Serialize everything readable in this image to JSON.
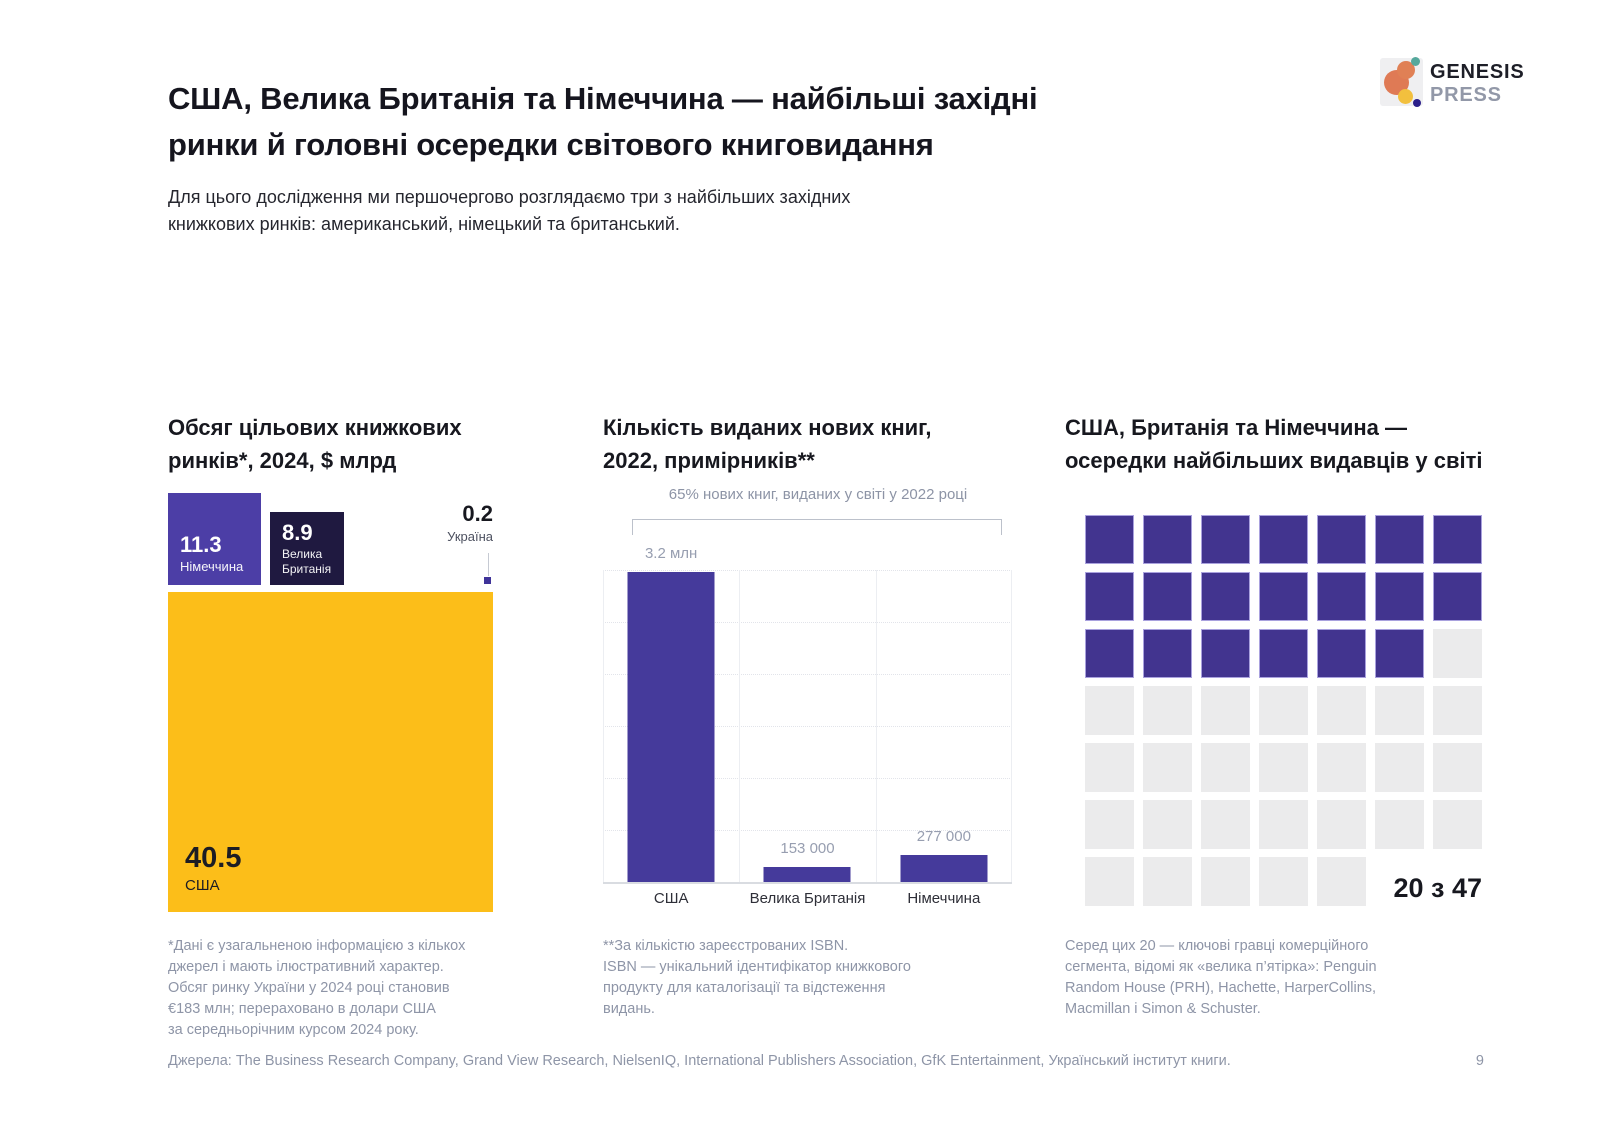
{
  "header": {
    "title": "США, Велика Британія та Німеччина — найбільші західні\nринки й головні осередки світового книговидання",
    "subtitle": "Для цього дослідження ми першочергово розглядаємо три з найбільших західних\nкнижкових ринків: американський, німецький та британський."
  },
  "logo": {
    "brand": "GENESIS",
    "brand_sub": "PRESS"
  },
  "chart_data": [
    {
      "type": "treemap",
      "title": "Обсяг цільових книжкових\nринків*, 2024, $ млрд",
      "unit": "$ млрд",
      "year": "2024",
      "points": [
        {
          "label": "Німеччина",
          "value": 11.3,
          "value_label": "11.3",
          "color": "#4c3ea6"
        },
        {
          "label": "Велика Британія",
          "value": 8.9,
          "value_label": "8.9",
          "color": "#1f1940"
        },
        {
          "label": "Україна",
          "value": 0.2,
          "value_label": "0.2",
          "color": "#3f3399"
        },
        {
          "label": "США",
          "value": 40.5,
          "value_label": "40.5",
          "color": "#fcbe19"
        }
      ]
    },
    {
      "type": "bar",
      "title": "Кількість виданих нових книг,\n2022, примірників**",
      "annotation": "65% нових книг, виданих у світі у 2022 році",
      "categories": [
        "США",
        "Велика Британія",
        "Німеччина"
      ],
      "values": [
        3200000,
        153000,
        277000
      ],
      "value_labels": [
        "3.2 млн",
        "153 000",
        "277 000"
      ],
      "ylim": [
        0,
        3200000
      ],
      "bar_color": "#453a9b",
      "grid": true,
      "legend": false
    },
    {
      "type": "waffle",
      "title": "США, Британія та Німеччина —\nосередки найбільших видавців у світі",
      "filled": 20,
      "total": 47,
      "columns": 7,
      "label": "20 з 47",
      "filled_color": "#42348f",
      "empty_color": "#ebebec"
    }
  ],
  "footnotes": {
    "left": "*Дані є узагальненою інформацією з кількох\nджерел і мають ілюстративний характер.\nОбсяг ринку України у 2024 році становив\n€183 млн; перераховано в долари США\nза середньорічним курсом 2024 року.",
    "middle": "**За кількістю зареєстрованих ISBN.\nISBN — унікальний ідентифікатор книжкового\nпродукту для каталогізації та відстеження\nвидань.",
    "right": "Серед цих 20 — ключові гравці комерційного\nсегмента, відомі як «велика п’ятірка»: Penguin\nRandom House (PRH), Hachette, HarperCollins,\nMacmillan і Simon & Schuster."
  },
  "source": "Джерела: The Business Research Company, Grand View Research, NielsenIQ, International Publishers Association, GfK Entertainment, Український інститут книги.",
  "page_number": "9",
  "colors": {
    "brand_purple": "#453a9b",
    "waffle_purple": "#42348f",
    "germany_purple": "#4c3ea6",
    "uk_navy": "#1f1940",
    "usa_yellow": "#fcbe19",
    "muted_gray": "#8e95a7"
  }
}
